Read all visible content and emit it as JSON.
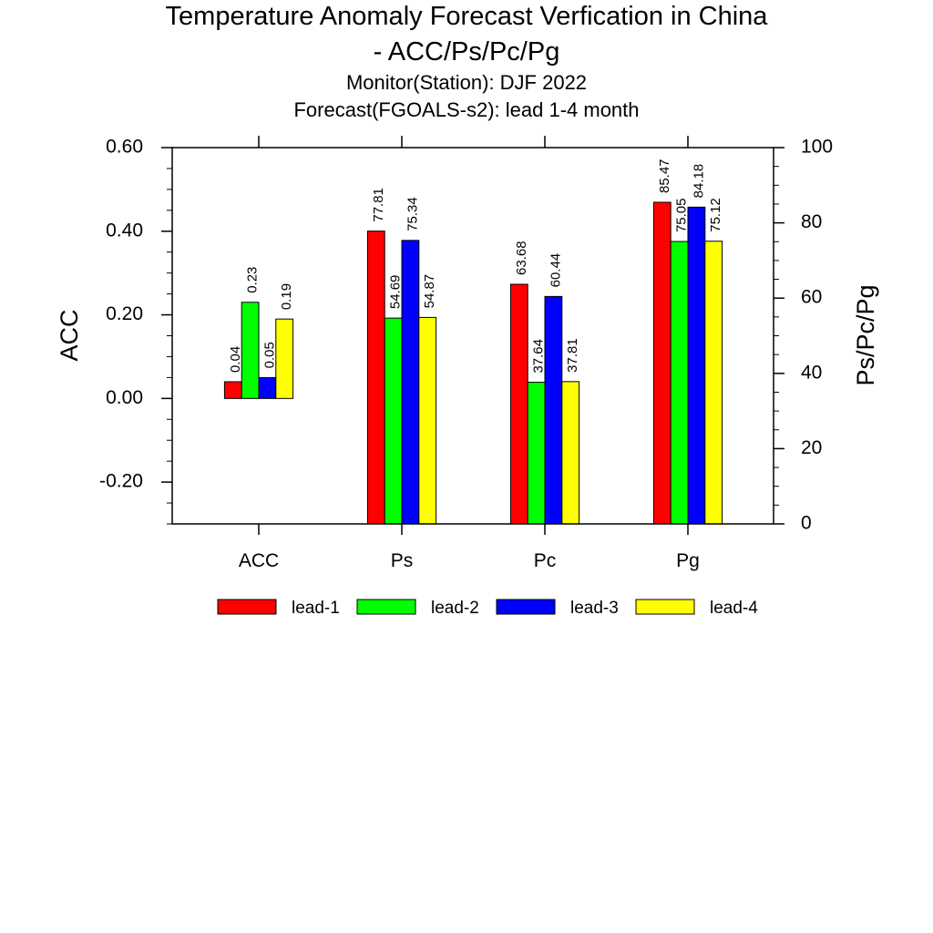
{
  "titles": {
    "line1": "Temperature Anomaly Forecast Verfication in China",
    "line2": "- ACC/Ps/Pc/Pg",
    "sub1": "Monitor(Station): DJF 2022",
    "sub2": "Forecast(FGOALS-s2): lead 1-4 month"
  },
  "chart_data": {
    "type": "bar",
    "categories": [
      "ACC",
      "Ps",
      "Pc",
      "Pg"
    ],
    "series": [
      {
        "name": "lead-1",
        "color": "#ff0000",
        "values": [
          0.04,
          77.81,
          63.68,
          85.47
        ],
        "labels": [
          "0.04",
          "77.81",
          "63.68",
          "85.47"
        ]
      },
      {
        "name": "lead-2",
        "color": "#00ff00",
        "values": [
          0.23,
          54.69,
          37.64,
          75.05
        ],
        "labels": [
          "0.23",
          "54.69",
          "37.64",
          "75.05"
        ]
      },
      {
        "name": "lead-3",
        "color": "#0000ff",
        "values": [
          0.05,
          75.34,
          60.44,
          84.18
        ],
        "labels": [
          "0.05",
          "75.34",
          "60.44",
          "84.18"
        ]
      },
      {
        "name": "lead-4",
        "color": "#ffff00",
        "values": [
          0.19,
          54.87,
          37.81,
          75.12
        ],
        "labels": [
          "0.19",
          "54.87",
          "37.81",
          "75.12"
        ]
      }
    ],
    "left_axis": {
      "label": "ACC",
      "range": [
        -0.3,
        0.6
      ],
      "ticks": [
        0.6,
        0.4,
        0.2,
        0.0,
        -0.2
      ],
      "tick_labels": [
        "0.60",
        "0.40",
        "0.20",
        "0.00",
        "-0.20"
      ],
      "applies_to": [
        "ACC"
      ]
    },
    "right_axis": {
      "label": "Ps/Pc/Pg",
      "range": [
        0,
        100
      ],
      "ticks": [
        100,
        80,
        60,
        40,
        20,
        0
      ],
      "tick_labels": [
        "100",
        "80",
        "60",
        "40",
        "20",
        "0"
      ],
      "applies_to": [
        "Ps",
        "Pc",
        "Pg"
      ]
    },
    "legend": "bottom-center",
    "grid": false
  }
}
